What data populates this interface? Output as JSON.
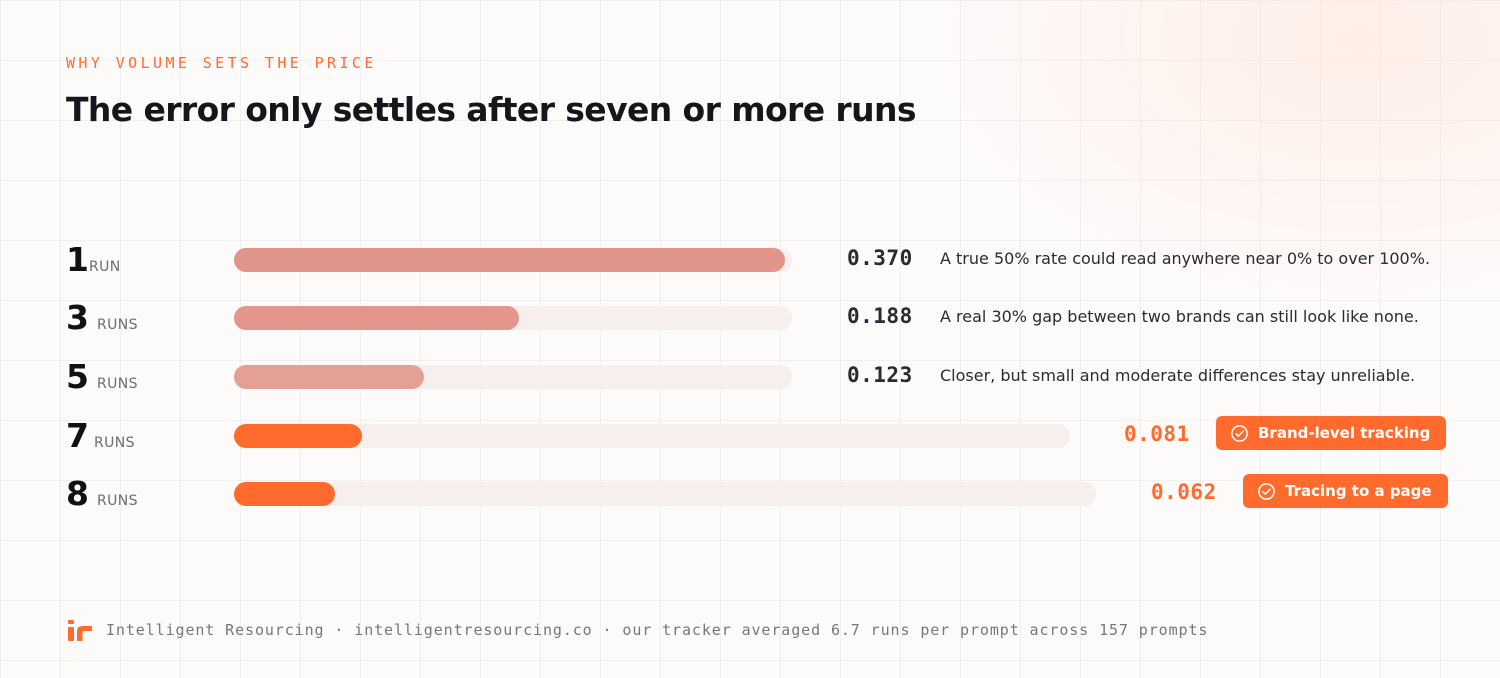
{
  "eyebrow": "WHY VOLUME SETS THE PRICE",
  "title": "The error only settles after seven or more runs",
  "chart_data": {
    "type": "bar",
    "orientation": "horizontal",
    "categories": [
      "1",
      "3",
      "5",
      "7",
      "8"
    ],
    "units": [
      "RUN",
      "RUNS",
      "RUNS",
      "RUNS",
      "RUNS"
    ],
    "values": [
      0.37,
      0.188,
      0.123,
      0.081,
      0.062
    ],
    "value_labels": [
      "0.370",
      "0.188",
      "0.123",
      "0.081",
      "0.062"
    ],
    "highlight": [
      false,
      false,
      false,
      true,
      true
    ],
    "notes": [
      "A true 50% rate could read anywhere near 0% to over 100%.",
      "A real 30% gap between two brands can still look like none.",
      "Closer, but small and moderate differences stay unreliable.",
      "",
      ""
    ],
    "badges": [
      "",
      "",
      "",
      "Brand-level tracking",
      "Tracing to a page"
    ],
    "colors": {
      "muted_bars": [
        "#e0948a",
        "#e3968c",
        "#e5a096"
      ],
      "highlight": "#ff6b2c",
      "track": "#f6efee"
    }
  },
  "footer": {
    "logo_icon": "ir-logo-icon",
    "text": "Intelligent Resourcing · intelligentresourcing.co · our tracker averaged 6.7 runs per prompt across 157 prompts"
  }
}
